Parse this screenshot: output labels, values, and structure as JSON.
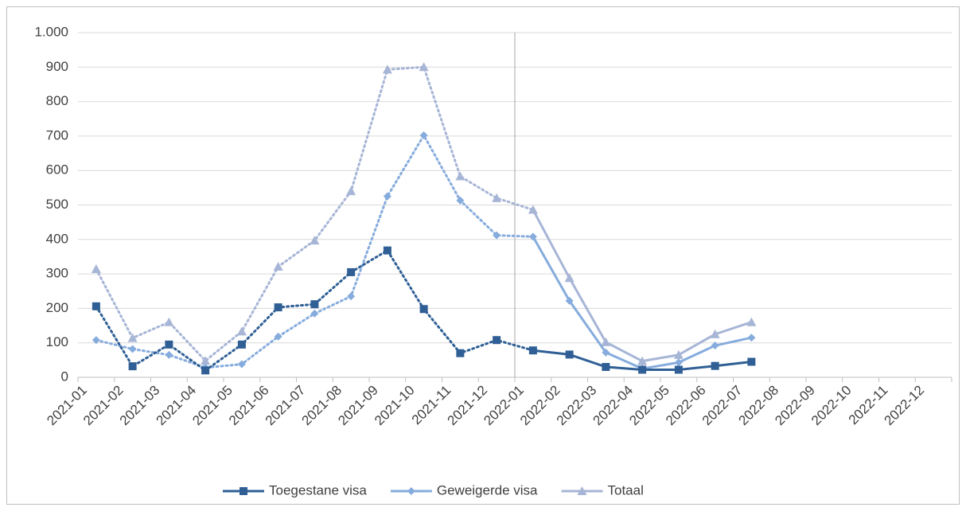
{
  "chart_data": {
    "type": "line",
    "categories": [
      "2021-01",
      "2021-02",
      "2021-03",
      "2021-04",
      "2021-05",
      "2021-06",
      "2021-07",
      "2021-08",
      "2021-09",
      "2021-10",
      "2021-11",
      "2021-12",
      "2022-01",
      "2022-02",
      "2022-03",
      "2022-04",
      "2022-05",
      "2022-06",
      "2022-07",
      "2022-08",
      "2022-09",
      "2022-10",
      "2022-11",
      "2022-12"
    ],
    "series": [
      {
        "name": "Toegestane visa",
        "color": "#2f5f95",
        "marker": "square",
        "values": [
          206,
          32,
          95,
          20,
          95,
          203,
          212,
          305,
          368,
          198,
          70,
          108,
          78,
          66,
          30,
          22,
          22,
          33,
          45,
          null,
          null,
          null,
          null,
          null
        ]
      },
      {
        "name": "Geweigerde visa",
        "color": "#86acdd",
        "marker": "diamond",
        "values": [
          108,
          82,
          65,
          28,
          38,
          118,
          185,
          235,
          525,
          702,
          513,
          412,
          408,
          222,
          72,
          25,
          43,
          92,
          115,
          null,
          null,
          null,
          null,
          null
        ]
      },
      {
        "name": "Totaal",
        "color": "#a7b5d6",
        "marker": "triangle",
        "values": [
          314,
          114,
          160,
          48,
          133,
          321,
          397,
          540,
          893,
          900,
          583,
          520,
          486,
          288,
          102,
          47,
          65,
          125,
          160,
          null,
          null,
          null,
          null,
          null
        ]
      }
    ],
    "ylim": [
      0,
      1000
    ],
    "yticks": [
      0,
      100,
      200,
      300,
      400,
      500,
      600,
      700,
      800,
      900,
      {
        "value": 1000,
        "label": "1.000"
      }
    ],
    "grid": true,
    "legend": "bottom",
    "dotted_before": "2022-01"
  }
}
